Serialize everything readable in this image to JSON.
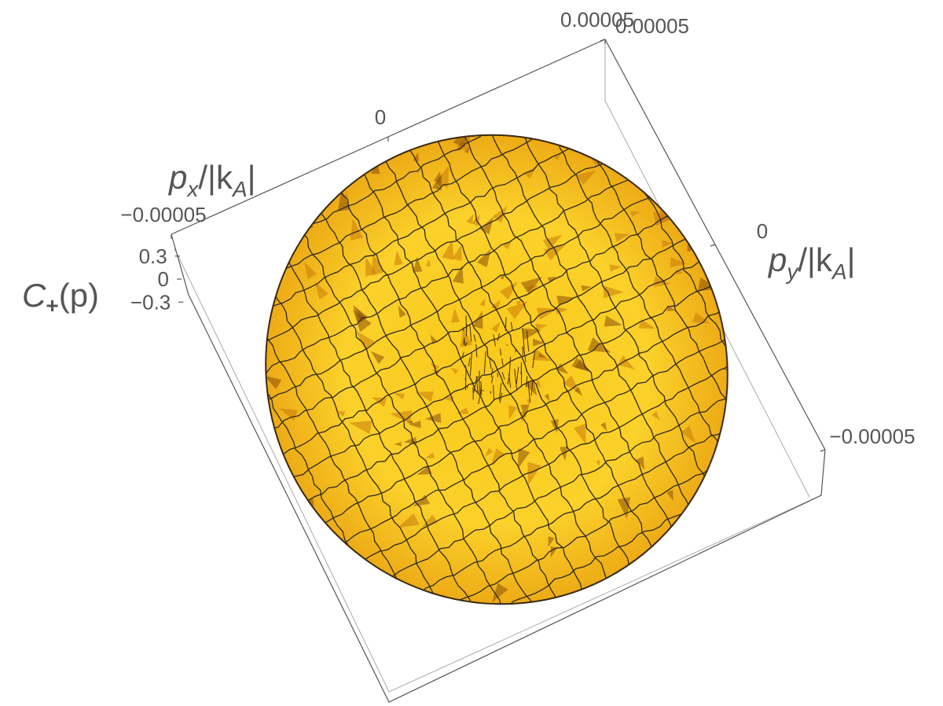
{
  "chart_data": {
    "type": "surface3d",
    "xlabel": [
      "p",
      "x",
      "/|k",
      "A",
      "|"
    ],
    "ylabel": [
      "p",
      "y",
      "/|k",
      "A",
      "|"
    ],
    "zlabel": [
      "C",
      "+",
      "(p)"
    ],
    "xlim": [
      -5e-05,
      5e-05
    ],
    "xticks": [
      {
        "value": -5e-05,
        "label": "−0.00005"
      },
      0,
      5e-05
    ],
    "ylim": [
      -5e-05,
      5e-05
    ],
    "yticks": [
      {
        "value": -5e-05,
        "label": "−0.00005"
      },
      0,
      5e-05
    ],
    "zlim": [
      -0.4,
      0.4
    ],
    "zticks": [
      {
        "value": -0.3,
        "label": "−0.3"
      },
      0,
      0.3
    ],
    "color": "#f5b800"
  }
}
